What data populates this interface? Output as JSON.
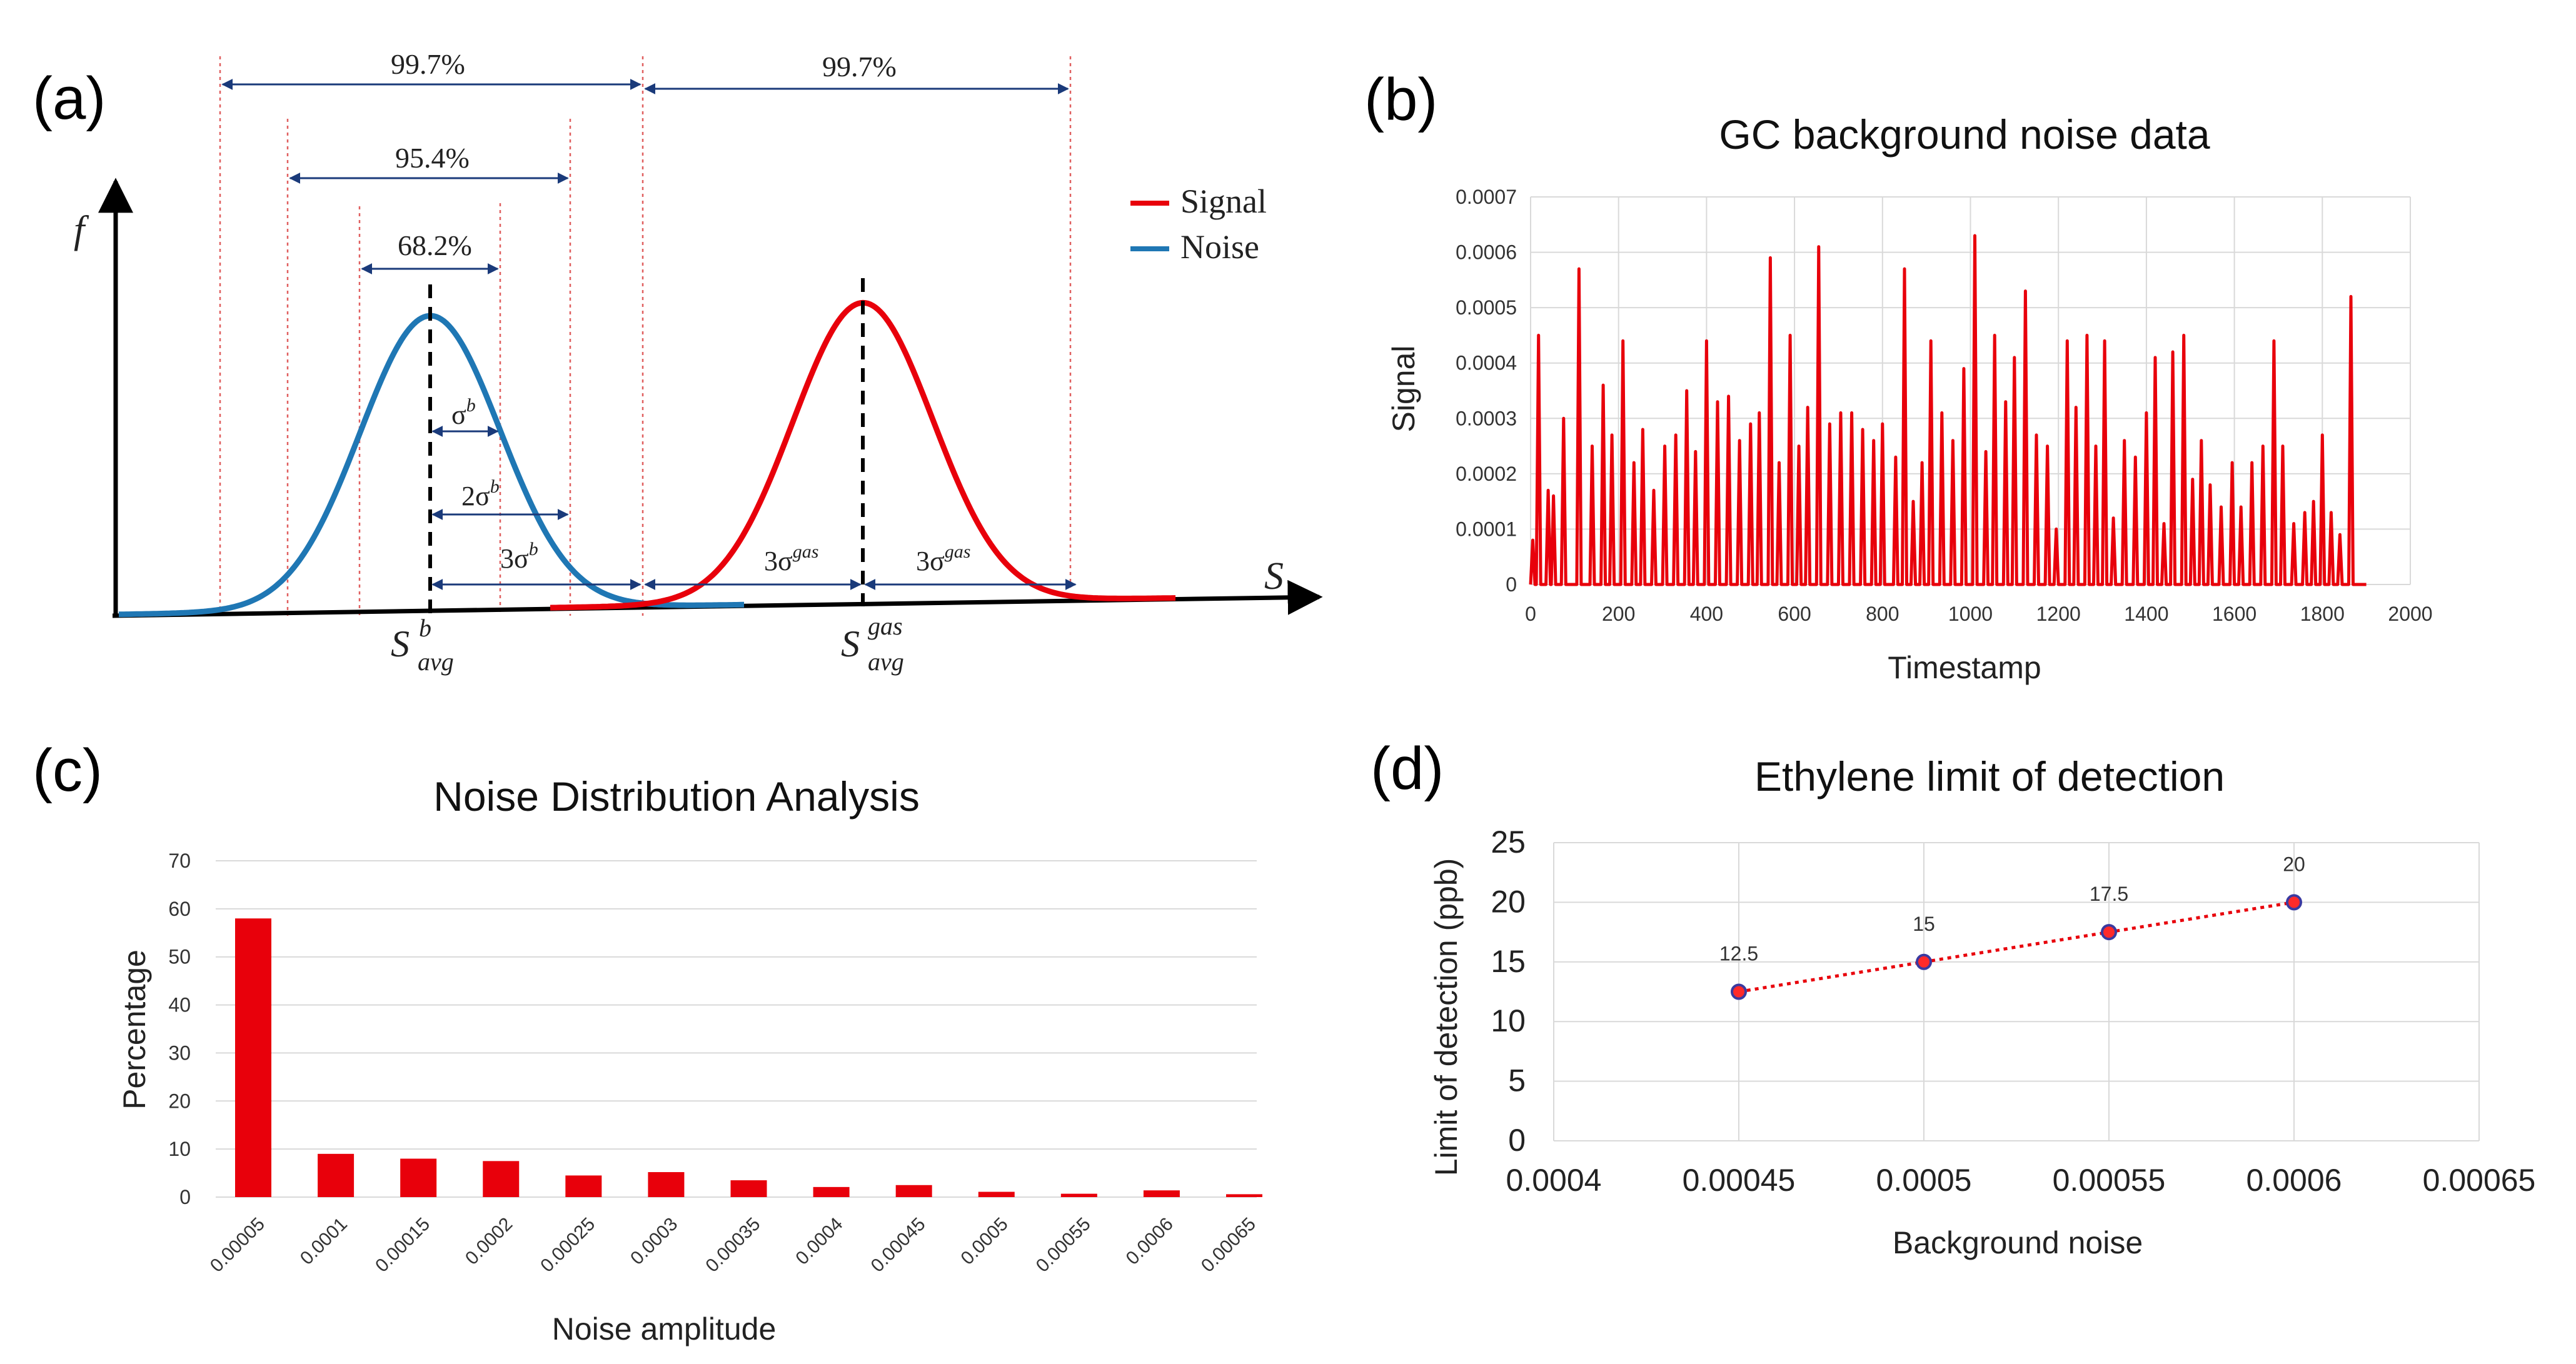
{
  "colors": {
    "signal": "#e8000b",
    "noise": "#1f77b4",
    "guides": "#e06060",
    "arrow": "#1a3a7a",
    "marker": "#ff2a2a",
    "marker_edge": "#3a3aa0"
  },
  "panel_a": {
    "label": "(a)",
    "y_axis_label": "f",
    "x_axis_label": "S",
    "legend": {
      "signal": "Signal",
      "noise": "Noise"
    },
    "percent_99": "99.7%",
    "percent_99_right": "99.7%",
    "percent_95": "95.4%",
    "percent_68": "68.2%",
    "sigma_b_label": "σ",
    "sigma_b_sup": "b",
    "two_sigma_label": "2σ",
    "two_sigma_sup": "b",
    "three_sigma_label": "3σ",
    "three_sigma_sup": "b",
    "three_sigma_gas_left": "3σ",
    "three_sigma_gas_right": "3σ",
    "gas_sup": "gas",
    "s_avg_b_main": "S",
    "s_avg_b_sub": "avg",
    "s_avg_b_sup": "b",
    "s_avg_gas_main": "S",
    "s_avg_gas_sub": "avg",
    "s_avg_gas_sup": "gas"
  },
  "chart_data": [
    {
      "panel": "(b)",
      "type": "line",
      "title": "GC background noise data",
      "xlabel": "Timestamp",
      "ylabel": "Signal",
      "xlim": [
        0,
        2000
      ],
      "ylim": [
        0,
        0.0007
      ],
      "xticks": [
        "0",
        "200",
        "400",
        "600",
        "800",
        "1000",
        "1200",
        "1400",
        "1600",
        "1800",
        "2000"
      ],
      "yticks": [
        "0",
        "0.0001",
        "0.0002",
        "0.0003",
        "0.0004",
        "0.0005",
        "0.0006",
        "0.0007"
      ],
      "series": [
        {
          "name": "Signal",
          "peaks": [
            [
              5,
              8e-05
            ],
            [
              18,
              0.00045
            ],
            [
              40,
              0.00017
            ],
            [
              52,
              0.00016
            ],
            [
              75,
              0.0003
            ],
            [
              110,
              0.00057
            ],
            [
              140,
              0.00025
            ],
            [
              165,
              0.00036
            ],
            [
              185,
              0.00027
            ],
            [
              210,
              0.00044
            ],
            [
              235,
              0.00022
            ],
            [
              255,
              0.00028
            ],
            [
              280,
              0.00017
            ],
            [
              305,
              0.00025
            ],
            [
              330,
              0.00027
            ],
            [
              355,
              0.00035
            ],
            [
              375,
              0.00024
            ],
            [
              400,
              0.00044
            ],
            [
              425,
              0.00033
            ],
            [
              450,
              0.00034
            ],
            [
              475,
              0.00026
            ],
            [
              500,
              0.00029
            ],
            [
              520,
              0.00031
            ],
            [
              545,
              0.00059
            ],
            [
              565,
              0.00022
            ],
            [
              590,
              0.00045
            ],
            [
              610,
              0.00025
            ],
            [
              630,
              0.00032
            ],
            [
              655,
              0.00061
            ],
            [
              680,
              0.00029
            ],
            [
              705,
              0.00031
            ],
            [
              730,
              0.00031
            ],
            [
              755,
              0.00028
            ],
            [
              780,
              0.00026
            ],
            [
              800,
              0.00029
            ],
            [
              830,
              0.00023
            ],
            [
              850,
              0.00057
            ],
            [
              870,
              0.00015
            ],
            [
              890,
              0.00022
            ],
            [
              910,
              0.00044
            ],
            [
              935,
              0.00031
            ],
            [
              960,
              0.00026
            ],
            [
              985,
              0.00039
            ],
            [
              1010,
              0.00063
            ],
            [
              1035,
              0.00024
            ],
            [
              1055,
              0.00045
            ],
            [
              1080,
              0.00033
            ],
            [
              1100,
              0.00041
            ],
            [
              1125,
              0.00053
            ],
            [
              1150,
              0.00027
            ],
            [
              1175,
              0.00025
            ],
            [
              1195,
              0.0001
            ],
            [
              1220,
              0.00044
            ],
            [
              1240,
              0.00032
            ],
            [
              1265,
              0.00045
            ],
            [
              1285,
              0.00025
            ],
            [
              1305,
              0.00044
            ],
            [
              1325,
              0.00012
            ],
            [
              1350,
              0.00026
            ],
            [
              1375,
              0.00023
            ],
            [
              1400,
              0.00031
            ],
            [
              1420,
              0.00041
            ],
            [
              1440,
              0.00011
            ],
            [
              1460,
              0.00042
            ],
            [
              1485,
              0.00045
            ],
            [
              1505,
              0.00019
            ],
            [
              1525,
              0.00026
            ],
            [
              1545,
              0.00018
            ],
            [
              1570,
              0.00014
            ],
            [
              1595,
              0.00022
            ],
            [
              1615,
              0.00014
            ],
            [
              1640,
              0.00022
            ],
            [
              1665,
              0.00025
            ],
            [
              1690,
              0.00044
            ],
            [
              1710,
              0.00025
            ],
            [
              1735,
              0.00011
            ],
            [
              1760,
              0.00013
            ],
            [
              1780,
              0.00015
            ],
            [
              1800,
              0.00027
            ],
            [
              1820,
              0.00013
            ],
            [
              1840,
              9e-05
            ],
            [
              1865,
              0.00052
            ]
          ]
        }
      ]
    },
    {
      "panel": "(c)",
      "type": "bar",
      "title": "Noise Distribution Analysis",
      "xlabel": "Noise amplitude",
      "ylabel": "Percentage",
      "ylim": [
        0,
        70
      ],
      "yticks": [
        "0",
        "10",
        "20",
        "30",
        "40",
        "50",
        "60",
        "70"
      ],
      "categories": [
        "0.00005",
        "0.0001",
        "0.00015",
        "0.0002",
        "0.00025",
        "0.0003",
        "0.00035",
        "0.0004",
        "0.00045",
        "0.0005",
        "0.00055",
        "0.0006",
        "0.00065"
      ],
      "values": [
        58,
        9,
        8,
        7.5,
        4.5,
        5.2,
        3.5,
        2.1,
        2.5,
        1.1,
        0.7,
        1.4,
        0.6
      ]
    },
    {
      "panel": "(d)",
      "type": "scatter",
      "title": "Ethylene limit of detection",
      "xlabel": "Background noise",
      "ylabel": "Limit of detection (ppb)",
      "xlim": [
        0.0004,
        0.00065
      ],
      "ylim": [
        0,
        25
      ],
      "xticks": [
        "0.0004",
        "0.00045",
        "0.0005",
        "0.00055",
        "0.0006",
        "0.00065"
      ],
      "yticks": [
        "0",
        "5",
        "10",
        "15",
        "20",
        "25"
      ],
      "x": [
        0.00045,
        0.0005,
        0.00055,
        0.0006
      ],
      "y": [
        12.5,
        15,
        17.5,
        20
      ],
      "data_labels": [
        "12.5",
        "15",
        "17.5",
        "20"
      ]
    }
  ]
}
